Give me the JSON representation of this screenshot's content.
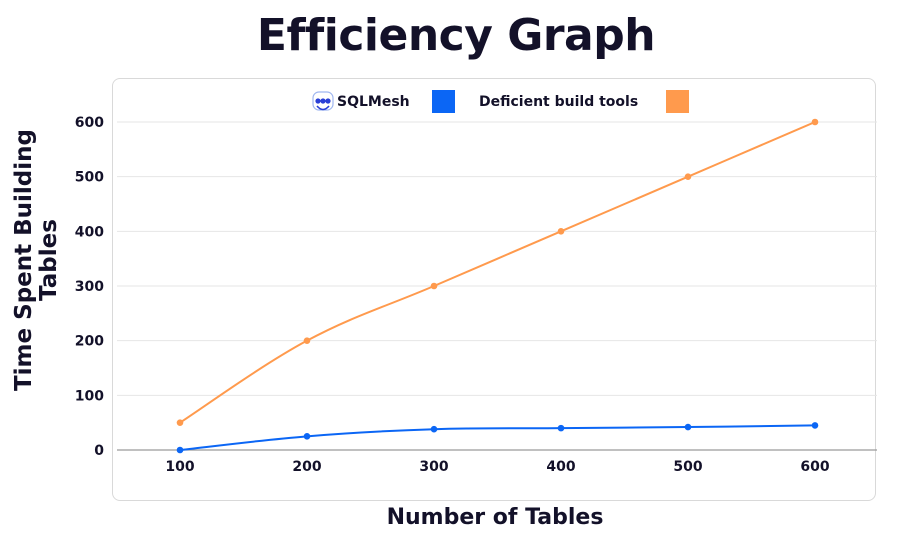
{
  "chart_data": {
    "type": "line",
    "title": "Efficiency Graph",
    "xlabel": "Number of Tables",
    "ylabel": "Time Spent Building Tables",
    "x": [
      100,
      200,
      300,
      400,
      500,
      600
    ],
    "xticks": [
      "100",
      "200",
      "300",
      "400",
      "500",
      "600"
    ],
    "yticks": [
      "0",
      "100",
      "200",
      "300",
      "400",
      "500",
      "600"
    ],
    "ylim": [
      0,
      600
    ],
    "grid": true,
    "legend_position": "top-center",
    "series": [
      {
        "name": "SQLMesh",
        "color": "#0b66f5",
        "values": [
          0,
          25,
          38,
          40,
          42,
          45
        ]
      },
      {
        "name": "Deficient build tools",
        "color": "#ff9a4d",
        "values": [
          50,
          200,
          300,
          400,
          500,
          600
        ]
      }
    ]
  }
}
